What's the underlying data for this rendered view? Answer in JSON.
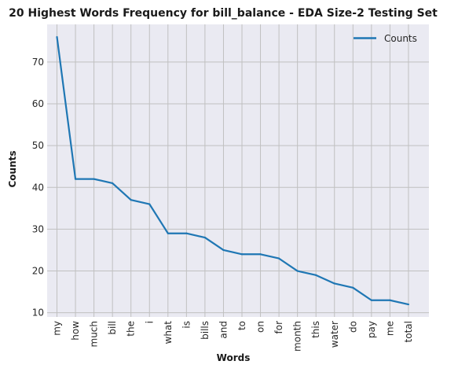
{
  "chart_data": {
    "type": "line",
    "title": "20 Highest Words Frequency for bill_balance - EDA Size-2 Testing Set",
    "xlabel": "Words",
    "ylabel": "Counts",
    "categories": [
      "my",
      "how",
      "much",
      "bill",
      "the",
      "i",
      "what",
      "is",
      "bills",
      "and",
      "to",
      "on",
      "for",
      "month",
      "this",
      "water",
      "do",
      "pay",
      "me",
      "total"
    ],
    "series": [
      {
        "name": "Counts",
        "values": [
          76,
          42,
          42,
          41,
          37,
          36,
          29,
          29,
          28,
          25,
          24,
          24,
          23,
          20,
          19,
          17,
          16,
          13,
          13,
          12
        ],
        "color": "#1f77b4"
      }
    ],
    "ylim": [
      9,
      79
    ],
    "yticks": [
      10,
      20,
      30,
      40,
      50,
      60,
      70
    ],
    "grid": true,
    "legend_position": "top-right",
    "background_color": "#eaeaf2",
    "grid_color": "#c0c0c0"
  }
}
